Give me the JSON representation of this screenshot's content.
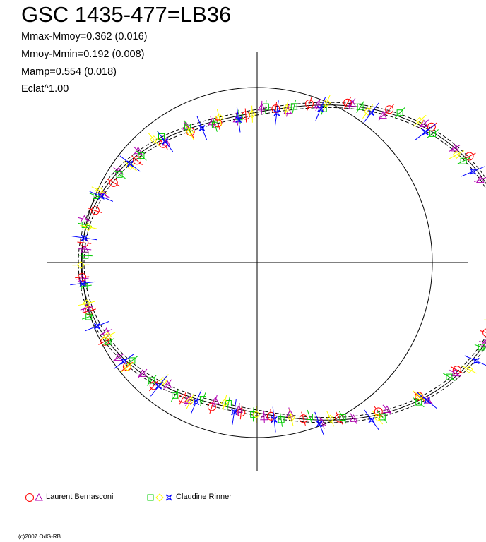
{
  "chart_data": {
    "type": "scatter",
    "title": "GSC 1435-477=LB36",
    "stats": [
      "Mmax-Mmoy=0.362 (0.016)",
      "Mmoy-Mmin=0.192 (0.008)",
      "Mamp=0.554 (0.018)",
      "Eclat^1.00"
    ],
    "projection": "polar",
    "grid": "reference circle with crosshair axes",
    "colors": {
      "red": "#ff0000",
      "magenta": "#b000b0",
      "green": "#00cc00",
      "yellow": "#ffff00",
      "blue": "#0000ff",
      "line": "#000000"
    },
    "legend": [
      {
        "label": "Laurent Bernasconi",
        "markers": [
          "circle",
          "triangle"
        ],
        "colors": [
          "#ff0000",
          "#b000b0"
        ]
      },
      {
        "label": "Claudine Rinner",
        "markers": [
          "square",
          "diamond",
          "star"
        ],
        "colors": [
          "#00cc00",
          "#ffff00",
          "#0000ff"
        ]
      }
    ],
    "credit": "(c)2007 OdG-RB"
  }
}
